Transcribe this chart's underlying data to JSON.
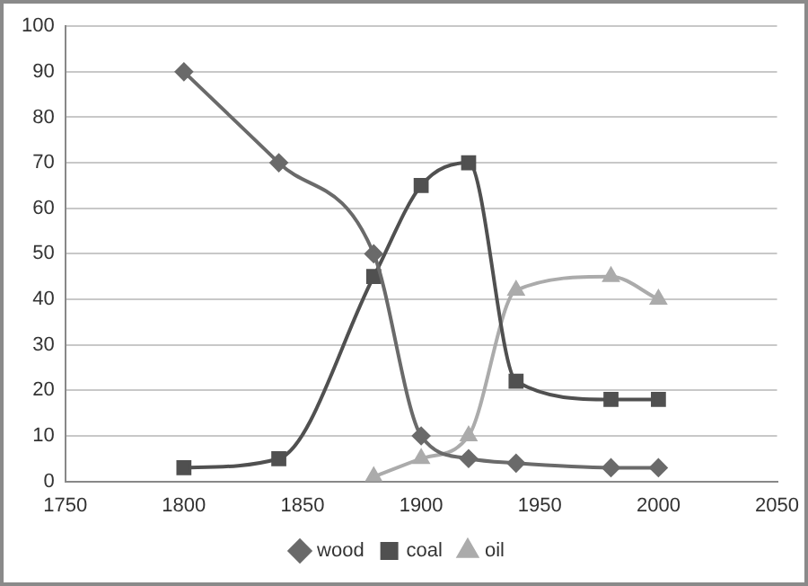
{
  "chart_data": {
    "type": "line",
    "xlim": [
      1750,
      2050
    ],
    "xticks": [
      1750,
      1800,
      1850,
      1900,
      1950,
      2000,
      2050
    ],
    "ylim": [
      0,
      100
    ],
    "yticks": [
      0,
      10,
      20,
      30,
      40,
      50,
      60,
      70,
      80,
      90,
      100
    ],
    "grid": "y",
    "legend": "bottom",
    "line_style": "solid",
    "series": [
      {
        "name": "wood",
        "color": "#6a6a6a",
        "marker": "diamond",
        "x": [
          1800,
          1840,
          1880,
          1900,
          1920,
          1940,
          1980,
          2000
        ],
        "values": [
          90,
          70,
          50,
          10,
          5,
          4,
          3,
          3
        ]
      },
      {
        "name": "coal",
        "color": "#505050",
        "marker": "square",
        "x": [
          1800,
          1840,
          1880,
          1900,
          1920,
          1940,
          1980,
          2000
        ],
        "values": [
          3,
          5,
          45,
          65,
          70,
          22,
          18,
          18
        ]
      },
      {
        "name": "oil",
        "color": "#ababab",
        "marker": "triangle",
        "x": [
          1880,
          1900,
          1920,
          1940,
          1980,
          2000
        ],
        "values": [
          1,
          5,
          10,
          42,
          45,
          40
        ]
      }
    ]
  }
}
